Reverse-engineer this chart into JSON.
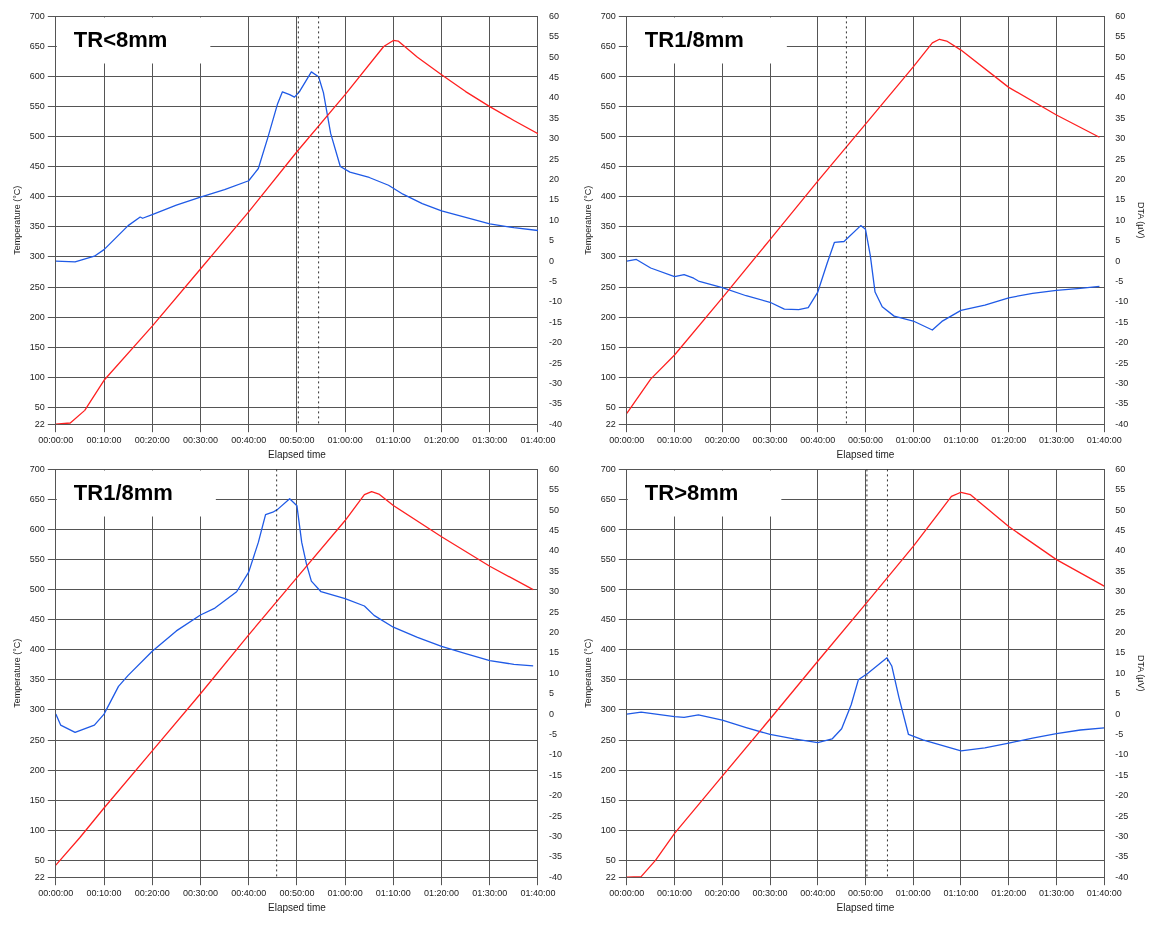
{
  "chart_data": [
    {
      "type": "line",
      "title": "TR<8mm",
      "xlabel": "Elapsed time",
      "ylabel": "Temperature (°C)",
      "xlim": [
        0,
        100
      ],
      "xticks": [
        {
          "value": 0,
          "label": "00:00:00"
        },
        {
          "value": 10,
          "label": "00:10:00"
        },
        {
          "value": 20,
          "label": "00:20:00"
        },
        {
          "value": 30,
          "label": "00:30:00"
        },
        {
          "value": 40,
          "label": "00:40:00"
        },
        {
          "value": 50,
          "label": "00:50:00"
        },
        {
          "value": 60,
          "label": "01:00:00"
        },
        {
          "value": 70,
          "label": "01:10:00"
        },
        {
          "value": 80,
          "label": "01:20:00"
        },
        {
          "value": 90,
          "label": "01:30:00"
        },
        {
          "value": 100,
          "label": "01:40:00"
        }
      ],
      "ylim": [
        22,
        700
      ],
      "yticks": [
        22,
        50,
        100,
        150,
        200,
        250,
        300,
        350,
        400,
        450,
        500,
        550,
        600,
        650,
        700
      ],
      "y2lim": [
        -40,
        60
      ],
      "y2ticks": [
        -40,
        -35,
        -30,
        -25,
        -20,
        -15,
        -10,
        -5,
        0,
        5,
        10,
        15,
        20,
        25,
        30,
        35,
        40,
        45,
        50,
        55,
        60
      ],
      "grid": true,
      "legend": false,
      "marker": "none",
      "line_style": "solid",
      "series": [
        {
          "color": "#ff2020",
          "x": [
            0,
            3,
            6,
            10,
            20,
            30,
            40,
            50,
            60,
            68,
            70,
            71,
            75,
            80,
            85,
            90,
            95,
            100
          ],
          "values": [
            22,
            24,
            45,
            95,
            185,
            280,
            375,
            475,
            570,
            650,
            660,
            659,
            632,
            603,
            575,
            550,
            527,
            505
          ]
        },
        {
          "color": "#1f5ae6",
          "axis": "y2",
          "x": [
            0,
            4,
            8,
            10,
            15,
            17.5,
            18,
            20,
            25,
            30,
            35,
            40,
            42,
            44,
            46,
            47,
            48.5,
            49.5,
            50.5,
            53,
            54.5,
            55.5,
            57,
            59,
            61,
            65,
            69,
            72,
            76,
            80,
            85,
            90,
            95,
            100
          ],
          "values": [
            0,
            -0.2,
            1.2,
            2.8,
            8.7,
            10.8,
            10.5,
            11.4,
            13.7,
            15.7,
            17.5,
            19.7,
            22.7,
            30.4,
            38.6,
            41.5,
            40.8,
            40.2,
            41.5,
            46.4,
            45.2,
            41.3,
            31.3,
            23.2,
            21.8,
            20.5,
            18.6,
            16.4,
            14.1,
            12.3,
            10.7,
            9.1,
            8.2,
            7.5
          ]
        }
      ],
      "ref_lines": [
        {
          "axis": "x",
          "value": 50.3,
          "line_style": "dotted",
          "color": "#333333"
        },
        {
          "axis": "x",
          "value": 54.5,
          "line_style": "dotted",
          "color": "#333333"
        }
      ]
    },
    {
      "type": "line",
      "title": "TR1/8mm",
      "xlabel": "Elapsed time",
      "ylabel": "Temperature (°C)",
      "y2label": "DTA (µV)",
      "xlim": [
        0,
        100
      ],
      "xticks": [
        {
          "value": 0,
          "label": "00:00:00"
        },
        {
          "value": 10,
          "label": "00:10:00"
        },
        {
          "value": 20,
          "label": "00:20:00"
        },
        {
          "value": 30,
          "label": "00:30:00"
        },
        {
          "value": 40,
          "label": "00:40:00"
        },
        {
          "value": 50,
          "label": "00:50:00"
        },
        {
          "value": 60,
          "label": "01:00:00"
        },
        {
          "value": 70,
          "label": "01:10:00"
        },
        {
          "value": 80,
          "label": "01:20:00"
        },
        {
          "value": 90,
          "label": "01:30:00"
        },
        {
          "value": 100,
          "label": "01:40:00"
        }
      ],
      "ylim": [
        22,
        700
      ],
      "yticks": [
        22,
        50,
        100,
        150,
        200,
        250,
        300,
        350,
        400,
        450,
        500,
        550,
        600,
        650,
        700
      ],
      "y2lim": [
        -40,
        60
      ],
      "y2ticks": [
        -40,
        -35,
        -30,
        -25,
        -20,
        -15,
        -10,
        -5,
        0,
        5,
        10,
        15,
        20,
        25,
        30,
        35,
        40,
        45,
        50,
        55,
        60
      ],
      "grid": true,
      "legend": false,
      "marker": "none",
      "line_style": "solid",
      "series": [
        {
          "color": "#ff2020",
          "x": [
            0,
            5,
            10,
            20,
            30,
            40,
            50,
            60,
            64,
            65.5,
            67,
            70,
            80,
            90,
            99
          ],
          "values": [
            40,
            97,
            137,
            232,
            329,
            426,
            521,
            616,
            656,
            662,
            659,
            644,
            582,
            536,
            499
          ]
        },
        {
          "color": "#1f5ae6",
          "axis": "y2",
          "x": [
            0,
            2,
            5,
            10,
            12,
            14,
            15,
            20,
            25,
            30,
            33,
            36,
            38,
            40,
            42,
            43.5,
            45.5,
            49,
            50,
            51,
            52,
            53.5,
            56,
            60,
            64,
            66,
            70,
            75,
            80,
            85,
            90,
            95,
            99
          ],
          "values": [
            0,
            0.4,
            -1.7,
            -3.8,
            -3.3,
            -4.2,
            -4.9,
            -6.5,
            -8.5,
            -10.1,
            -11.8,
            -11.9,
            -11.4,
            -7.6,
            -0.4,
            4.6,
            4.8,
            8.7,
            7.8,
            1.4,
            -7.6,
            -11.2,
            -13.5,
            -14.7,
            -16.9,
            -14.8,
            -12.1,
            -10.8,
            -9.0,
            -7.9,
            -7.2,
            -6.7,
            -6.2
          ]
        }
      ],
      "ref_lines": [
        {
          "axis": "x",
          "value": 46,
          "line_style": "dotted",
          "color": "#333333"
        }
      ]
    },
    {
      "type": "line",
      "title": "TR1/8mm",
      "xlabel": "Elapsed time",
      "ylabel": "Temperature (°C)",
      "xlim": [
        0,
        100
      ],
      "xticks": [
        {
          "value": 0,
          "label": "00:00:00"
        },
        {
          "value": 10,
          "label": "00:10:00"
        },
        {
          "value": 20,
          "label": "00:20:00"
        },
        {
          "value": 30,
          "label": "00:30:00"
        },
        {
          "value": 40,
          "label": "00:40:00"
        },
        {
          "value": 50,
          "label": "00:50:00"
        },
        {
          "value": 60,
          "label": "01:00:00"
        },
        {
          "value": 70,
          "label": "01:10:00"
        },
        {
          "value": 80,
          "label": "01:20:00"
        },
        {
          "value": 90,
          "label": "01:30:00"
        },
        {
          "value": 100,
          "label": "01:40:00"
        }
      ],
      "ylim": [
        22,
        700
      ],
      "yticks": [
        22,
        50,
        100,
        150,
        200,
        250,
        300,
        350,
        400,
        450,
        500,
        550,
        600,
        650,
        700
      ],
      "y2lim": [
        -40,
        60
      ],
      "y2ticks": [
        -40,
        -35,
        -30,
        -25,
        -20,
        -15,
        -10,
        -5,
        0,
        5,
        10,
        15,
        20,
        25,
        30,
        35,
        40,
        45,
        50,
        55,
        60
      ],
      "grid": true,
      "legend": false,
      "marker": "none",
      "line_style": "solid",
      "series": [
        {
          "color": "#ff2020",
          "x": [
            0,
            5,
            10,
            20,
            30,
            40,
            50,
            60,
            64,
            65.5,
            67,
            70,
            80,
            90,
            99
          ],
          "values": [
            42,
            88,
            137,
            232,
            327,
            425,
            520,
            615,
            658,
            663,
            659,
            640,
            588,
            539,
            500
          ]
        },
        {
          "color": "#1f5ae6",
          "axis": "y2",
          "x": [
            0,
            1,
            4,
            8,
            10,
            13,
            15,
            20,
            25,
            30,
            33,
            37.5,
            40,
            42,
            43.5,
            45,
            46,
            48.5,
            50,
            51,
            52,
            53,
            55,
            60,
            64,
            66,
            70,
            75,
            80,
            85,
            90,
            95,
            99
          ],
          "values": [
            0,
            -2.7,
            -4.5,
            -2.7,
            0,
            6.8,
            9.5,
            15.4,
            20.4,
            24.3,
            26,
            30,
            34.8,
            42.1,
            48.9,
            49.5,
            50.2,
            52.8,
            51.1,
            42.1,
            36.7,
            32.6,
            30,
            28.3,
            26.5,
            24.2,
            21.3,
            18.8,
            16.6,
            14.8,
            13.1,
            12.2,
            11.8
          ]
        }
      ],
      "ref_lines": [
        {
          "axis": "x",
          "value": 45.8,
          "line_style": "dotted",
          "color": "#333333"
        }
      ]
    },
    {
      "type": "line",
      "title": "TR>8mm",
      "xlabel": "Elapsed time",
      "ylabel": "Temperature (°C)",
      "y2label": "DTA (µV)",
      "xlim": [
        0,
        100
      ],
      "xticks": [
        {
          "value": 0,
          "label": "00:00:00"
        },
        {
          "value": 10,
          "label": "00:10:00"
        },
        {
          "value": 20,
          "label": "00:20:00"
        },
        {
          "value": 30,
          "label": "00:30:00"
        },
        {
          "value": 40,
          "label": "00:40:00"
        },
        {
          "value": 50,
          "label": "00:50:00"
        },
        {
          "value": 60,
          "label": "01:00:00"
        },
        {
          "value": 70,
          "label": "01:10:00"
        },
        {
          "value": 80,
          "label": "01:20:00"
        },
        {
          "value": 90,
          "label": "01:30:00"
        },
        {
          "value": 100,
          "label": "01:40:00"
        }
      ],
      "ylim": [
        22,
        700
      ],
      "yticks": [
        22,
        50,
        100,
        150,
        200,
        250,
        300,
        350,
        400,
        450,
        500,
        550,
        600,
        650,
        700
      ],
      "y2lim": [
        -40,
        60
      ],
      "y2ticks": [
        -40,
        -35,
        -30,
        -25,
        -20,
        -15,
        -10,
        -5,
        0,
        5,
        10,
        15,
        20,
        25,
        30,
        35,
        40,
        45,
        50,
        55,
        60
      ],
      "grid": true,
      "legend": false,
      "marker": "none",
      "line_style": "solid",
      "series": [
        {
          "color": "#ff2020",
          "x": [
            0,
            3,
            6,
            10,
            20,
            30,
            40,
            50,
            60,
            68,
            70,
            72,
            80,
            90,
            100
          ],
          "values": [
            22,
            23,
            50,
            95,
            190,
            285,
            381,
            476,
            572,
            655,
            662,
            658,
            605,
            550,
            506
          ]
        },
        {
          "color": "#1f5ae6",
          "axis": "y2",
          "x": [
            0,
            3,
            10,
            12,
            15,
            20,
            25,
            30,
            35,
            40,
            43,
            45,
            47,
            48.5,
            50.5,
            54.5,
            55.5,
            57,
            59,
            62,
            66,
            70,
            75,
            80,
            85,
            90,
            95,
            100
          ],
          "values": [
            0,
            0.5,
            -0.6,
            -0.8,
            -0.2,
            -1.5,
            -3.3,
            -5,
            -6.1,
            -7,
            -6.1,
            -3.6,
            2.3,
            8.4,
            10,
            13.8,
            11.8,
            4.1,
            -5,
            -6.3,
            -7.7,
            -9.0,
            -8.3,
            -7.1,
            -5.9,
            -4.8,
            -3.9,
            -3.4
          ]
        }
      ],
      "ref_lines": [
        {
          "axis": "x",
          "value": 50.3,
          "line_style": "dotted",
          "color": "#333333"
        },
        {
          "axis": "x",
          "value": 54.6,
          "line_style": "dotted",
          "color": "#333333"
        }
      ]
    }
  ]
}
